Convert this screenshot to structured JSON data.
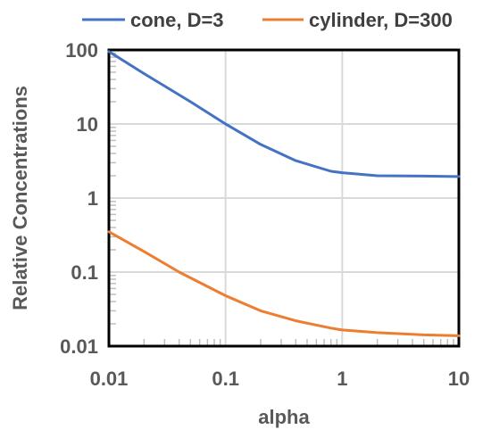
{
  "chart_data": {
    "type": "line",
    "title": "",
    "xlabel": "alpha",
    "ylabel": "Relative Concentrations",
    "x_scale": "log",
    "y_scale": "log",
    "xlim": [
      0.01,
      10
    ],
    "ylim": [
      0.01,
      100
    ],
    "x_ticks": [
      "0.01",
      "0.1",
      "1",
      "10"
    ],
    "y_ticks": [
      "0.01",
      "0.1",
      "1",
      "10",
      "100"
    ],
    "grid": true,
    "legend_position": "top",
    "series": [
      {
        "name": "cone, D=3",
        "color": "#4472C4",
        "x": [
          0.01,
          0.02,
          0.05,
          0.1,
          0.2,
          0.4,
          0.8,
          1,
          2,
          5,
          10
        ],
        "y": [
          95,
          48,
          20,
          10,
          5.3,
          3.2,
          2.3,
          2.2,
          2.0,
          1.98,
          1.95
        ]
      },
      {
        "name": "cylinder, D=300",
        "color": "#ED7D31",
        "x": [
          0.01,
          0.02,
          0.04,
          0.1,
          0.2,
          0.4,
          0.8,
          1,
          2,
          5,
          10
        ],
        "y": [
          0.35,
          0.19,
          0.1,
          0.048,
          0.03,
          0.022,
          0.0175,
          0.0165,
          0.0152,
          0.0142,
          0.0138
        ]
      }
    ]
  }
}
